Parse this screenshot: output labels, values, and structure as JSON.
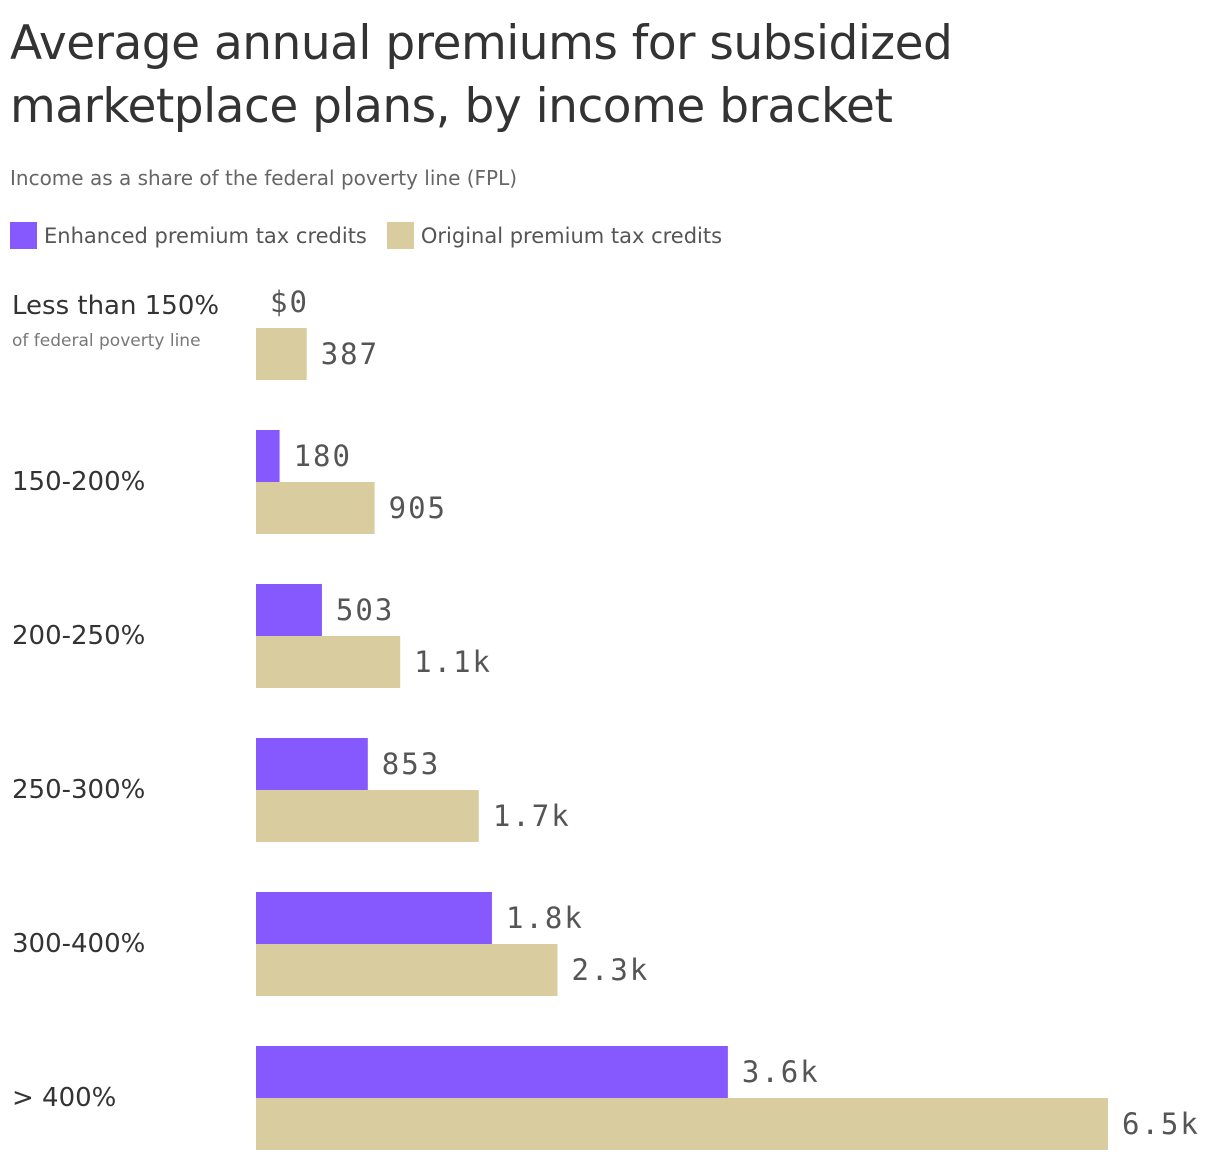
{
  "header": {
    "title": "Average annual premiums for subsidized marketplace plans, by income bracket",
    "subtitle": "Income as a share of the federal poverty line (FPL)"
  },
  "legend": {
    "items": [
      {
        "label": "Enhanced premium tax credits",
        "color": "#8559fd"
      },
      {
        "label": "Original premium tax credits",
        "color": "#d9cd9f"
      }
    ]
  },
  "chart_data": {
    "type": "bar",
    "orientation": "horizontal",
    "title": "Average annual premiums for subsidized marketplace plans, by income bracket",
    "subtitle": "Income as a share of the federal poverty line (FPL)",
    "categories": [
      "Less than 150%",
      "150-200%",
      "200-250%",
      "250-300%",
      "300-400%",
      "> 400%"
    ],
    "category_notes": [
      "of federal poverty line",
      "",
      "",
      "",
      "",
      ""
    ],
    "series": [
      {
        "name": "Enhanced premium tax credits",
        "color": "#8559fd",
        "values": [
          0,
          180,
          503,
          853,
          1800,
          3600
        ],
        "labels": [
          "$0",
          "180",
          "503",
          "853",
          "1.8k",
          "3.6k"
        ]
      },
      {
        "name": "Original premium tax credits",
        "color": "#d9cd9f",
        "values": [
          387,
          905,
          1100,
          1700,
          2300,
          6500
        ],
        "labels": [
          "387",
          "905",
          "1.1k",
          "1.7k",
          "2.3k",
          "6.5k"
        ]
      }
    ],
    "xlim": [
      0,
      6500
    ],
    "grid": false,
    "legend_position": "top-left"
  }
}
